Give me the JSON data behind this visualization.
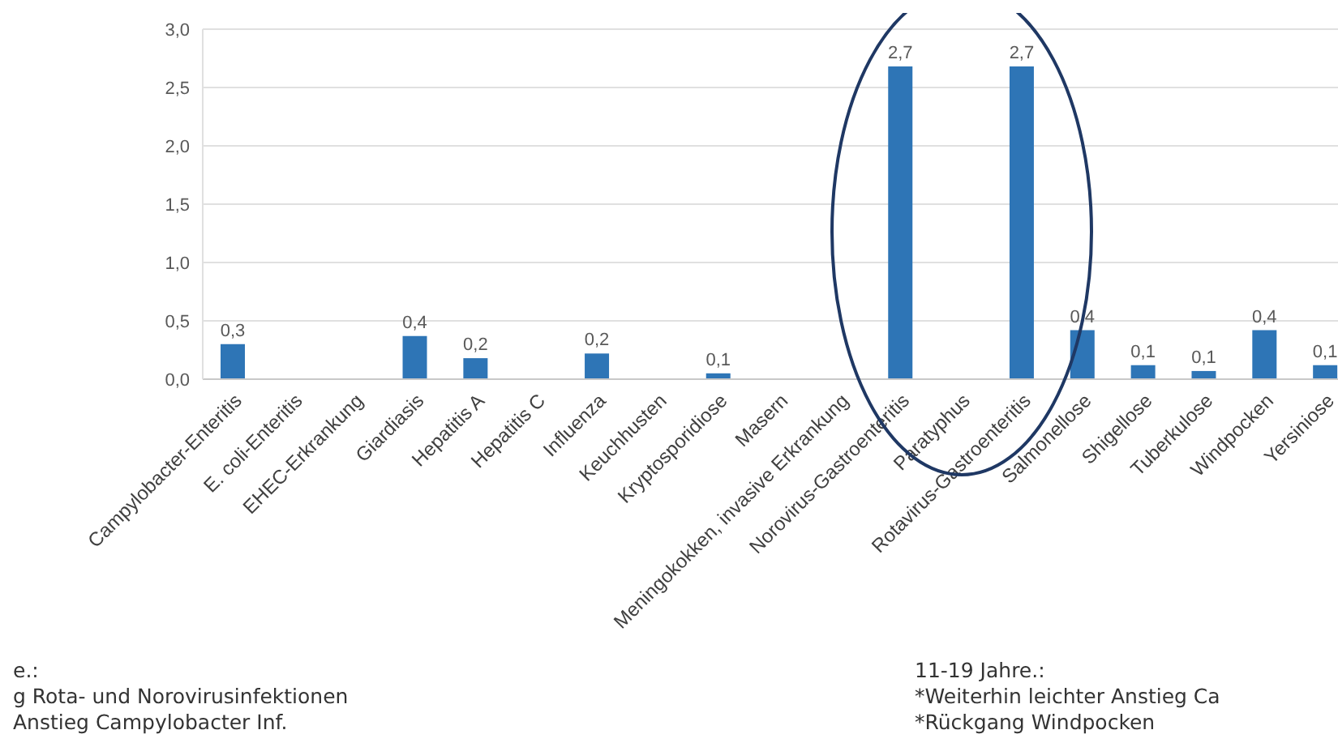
{
  "chart_data": {
    "type": "bar",
    "categories": [
      "Campylobacter-Enteritis",
      "E. coli-Enteritis",
      "EHEC-Erkrankung",
      "Giardiasis",
      "Hepatitis A",
      "Hepatitis C",
      "Influenza",
      "Keuchhusten",
      "Kryptosporidiose",
      "Masern",
      "Meningokokken, invasive Erkrankung",
      "Norovirus-Gastroenteritis",
      "Paratyphus",
      "Rotavirus-Gastroenteritis",
      "Salmonellose",
      "Shigellose",
      "Tuberkulose",
      "Windpocken",
      "Yersiniose"
    ],
    "values": [
      0.3,
      null,
      null,
      0.37,
      0.18,
      null,
      0.22,
      null,
      0.05,
      null,
      null,
      2.68,
      null,
      2.68,
      0.42,
      0.12,
      0.07,
      0.42,
      0.12
    ],
    "value_labels": [
      "0,3",
      null,
      null,
      "0,4",
      "0,2",
      null,
      "0,2",
      null,
      "0,1",
      null,
      null,
      "2,7",
      null,
      "2,7",
      "0,4",
      "0,1",
      "0,1",
      "0,4",
      "0,1"
    ],
    "color": "#2e75b6",
    "ylim": [
      0,
      3
    ],
    "yticks": [
      {
        "value": 0,
        "label": "0,0"
      },
      {
        "value": 0.5,
        "label": "0,5"
      },
      {
        "value": 1,
        "label": "1,0"
      },
      {
        "value": 1.5,
        "label": "1,5"
      },
      {
        "value": 2,
        "label": "2,0"
      },
      {
        "value": 2.5,
        "label": "2,5"
      },
      {
        "value": 3,
        "label": "3,0"
      }
    ],
    "grid": "y",
    "annotations": [
      "e.:",
      "g Rota- und Norovirusinfektionen",
      "Anstieg Campylobacter Inf.",
      "11-19 Jahre.:",
      "*Weiterhin leichter Anstieg Ca",
      "*Rückgang Windpocken"
    ]
  }
}
